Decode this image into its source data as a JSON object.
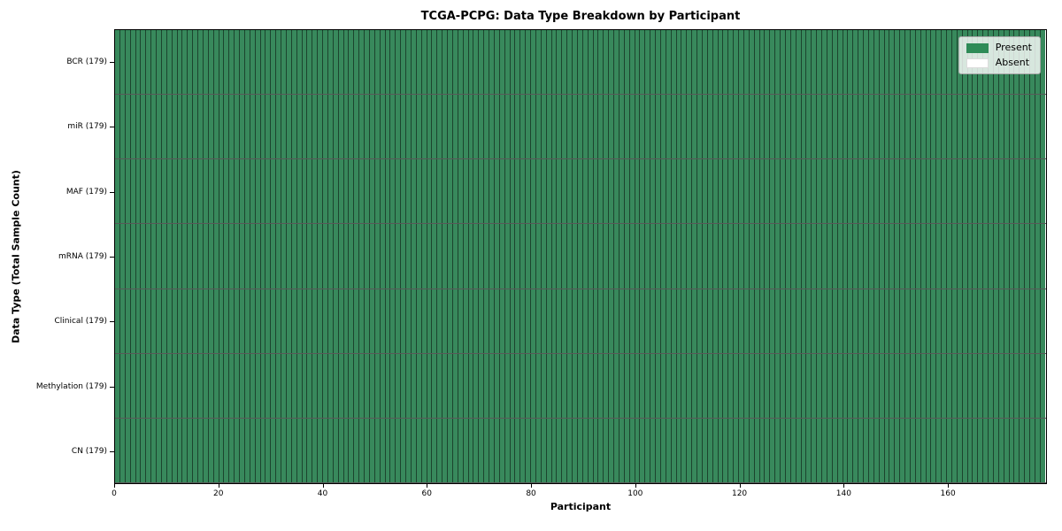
{
  "chart_data": {
    "type": "heatmap",
    "title": "TCGA-PCPG: Data Type Breakdown by Participant",
    "xlabel": "Participant",
    "ylabel": "Data Type (Total Sample Count)",
    "categories": [
      "BCR (179)",
      "miR (179)",
      "MAF (179)",
      "mRNA (179)",
      "Clinical (179)",
      "Methylation (179)",
      "CN (179)"
    ],
    "rows": [
      {
        "label": "BCR (179)",
        "data_type": "BCR",
        "total_samples": 179,
        "present": 179,
        "absent": 0
      },
      {
        "label": "miR (179)",
        "data_type": "miR",
        "total_samples": 179,
        "present": 179,
        "absent": 0
      },
      {
        "label": "MAF (179)",
        "data_type": "MAF",
        "total_samples": 179,
        "present": 179,
        "absent": 0
      },
      {
        "label": "mRNA (179)",
        "data_type": "mRNA",
        "total_samples": 179,
        "present": 179,
        "absent": 0
      },
      {
        "label": "Clinical (179)",
        "data_type": "Clinical",
        "total_samples": 179,
        "present": 179,
        "absent": 0
      },
      {
        "label": "Methylation (179)",
        "data_type": "Methylation",
        "total_samples": 179,
        "present": 179,
        "absent": 0
      },
      {
        "label": "CN (179)",
        "data_type": "CN",
        "total_samples": 179,
        "present": 179,
        "absent": 0
      }
    ],
    "participants": 179,
    "xlim": [
      0,
      179
    ],
    "x_ticks": [
      0,
      20,
      40,
      60,
      80,
      100,
      120,
      140,
      160
    ],
    "legend": {
      "position": "upper right",
      "items": [
        {
          "label": "Present",
          "color": "#2e8b57"
        },
        {
          "label": "Absent",
          "color": "#ffffff"
        }
      ]
    },
    "colors": {
      "present_cell": "#38895c",
      "absent_cell": "#ffffff",
      "cell_border": "rgba(0,0,0,0.5)",
      "row_border": "rgba(0,0,0,0.65)",
      "frame": "#000000",
      "legend_border": "#a6a6a6"
    }
  }
}
